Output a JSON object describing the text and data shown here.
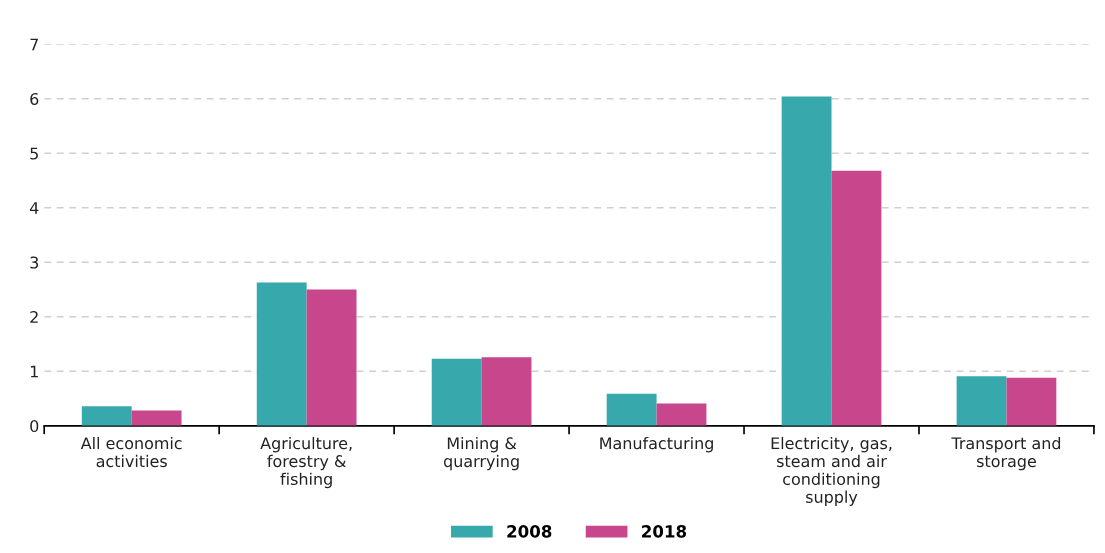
{
  "chart_data": {
    "type": "bar",
    "categories": [
      "All economic\nactivities",
      "Agriculture,\nforestry &\nfishing",
      "Mining &\nquarrying",
      "Manufacturing",
      "Electricity, gas,\nsteam and air\nconditioning\nsupply",
      "Transport and\nstorage"
    ],
    "series": [
      {
        "name": "2008",
        "color": "#37a9ad",
        "values": [
          0.36,
          2.63,
          1.23,
          0.59,
          6.04,
          0.91
        ]
      },
      {
        "name": "2018",
        "color": "#c8468c",
        "values": [
          0.28,
          2.5,
          1.26,
          0.41,
          4.68,
          0.88
        ]
      }
    ],
    "ylim": [
      0,
      7
    ],
    "yticks": [
      0,
      1,
      2,
      3,
      4,
      5,
      6,
      7
    ],
    "grid": "y",
    "legend": "bottom"
  }
}
